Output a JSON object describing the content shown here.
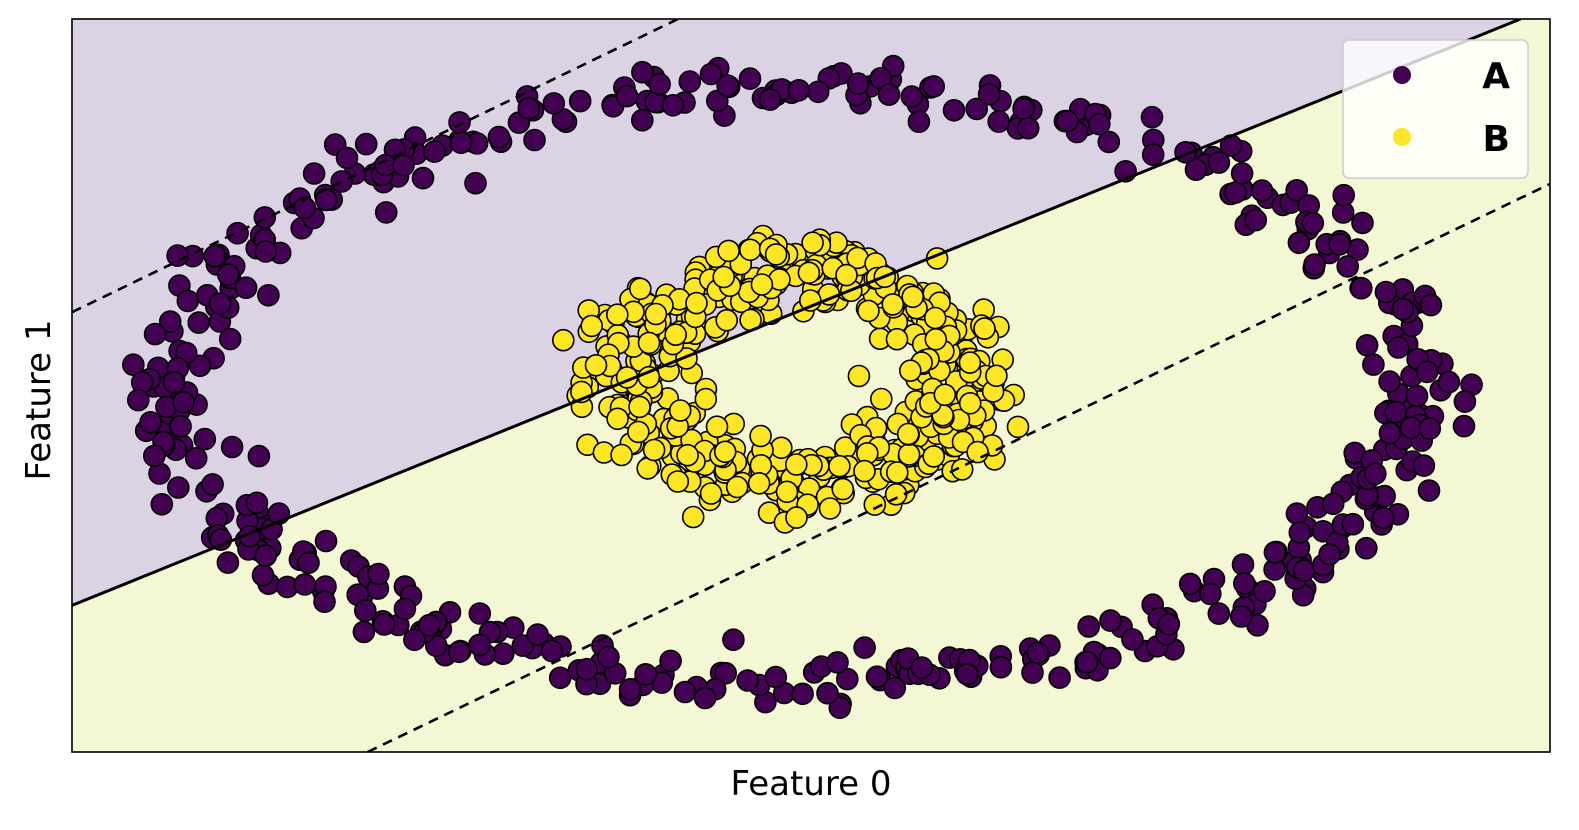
{
  "chart_data": {
    "type": "scatter",
    "title": "",
    "xlabel": "Feature 0",
    "ylabel": "Feature 1",
    "xlim": [
      -1.0,
      1.0
    ],
    "ylim": [
      -1.0,
      1.0
    ],
    "x_ticks": [],
    "y_ticks": [],
    "grid": false,
    "legend": {
      "placement": "top-right",
      "entries": [
        "A",
        "B"
      ]
    },
    "colors": {
      "A": "#440154",
      "B": "#fde725",
      "region_A": "#dbd3e4",
      "region_B": "#f3f7d3",
      "edge": "#000000"
    },
    "decision_boundary": {
      "kind": "linear",
      "line": {
        "x": [
          -1.0,
          0.96
        ],
        "y": [
          -0.6,
          1.0
        ]
      },
      "margin_upper": {
        "x": [
          -1.0,
          -0.18
        ],
        "y": [
          0.2,
          1.0
        ]
      },
      "margin_lower": {
        "x": [
          -0.6,
          1.0
        ],
        "y": [
          -1.0,
          0.55
        ]
      }
    },
    "series": [
      {
        "name": "A",
        "shape": "ring",
        "center": [
          -0.02,
          0.0
        ],
        "radii": [
          0.84,
          0.81
        ],
        "noise": 0.035,
        "count": 500
      },
      {
        "name": "B",
        "shape": "ring",
        "center": [
          -0.02,
          0.03
        ],
        "radii": [
          0.22,
          0.28
        ],
        "noise": 0.045,
        "count": 500
      }
    ]
  }
}
